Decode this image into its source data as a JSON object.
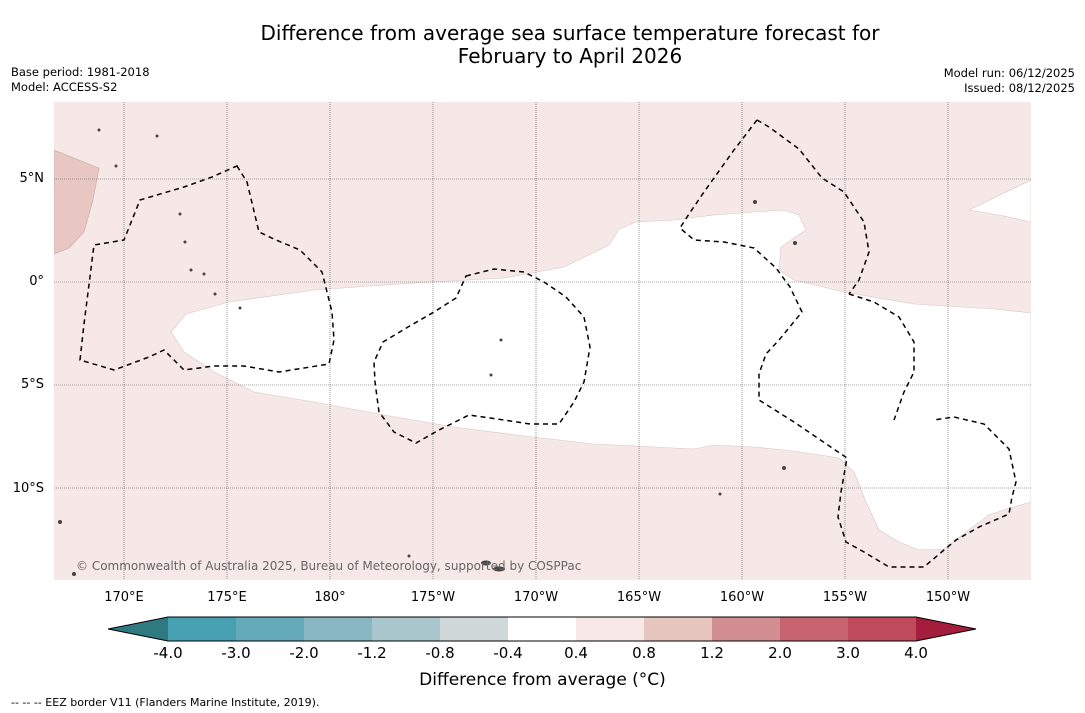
{
  "title": {
    "line1": "Difference from average sea surface temperature forecast for",
    "line2": "February to April 2026"
  },
  "meta": {
    "base_period": "Base period: 1981-2018",
    "model": "Model: ACCESS-S2",
    "model_run": "Model run: 06/12/2025",
    "issued": "Issued: 08/12/2025"
  },
  "map": {
    "lat_labels": [
      "5°N",
      "0°",
      "5°S",
      "10°S"
    ],
    "lon_labels": [
      "170°E",
      "175°E",
      "180°",
      "175°W",
      "170°W",
      "165°W",
      "160°W",
      "155°W",
      "150°W"
    ],
    "copyright": "© Commonwealth of Australia 2025, Bureau of Meteorology, supported by COSPPac",
    "colors": {
      "light_warm": "#f5e8e6",
      "moderate_warm": "#e8c6c1",
      "neutral": "#ffffff",
      "grid": "#555555",
      "eez": "#000000",
      "land": "#444444"
    }
  },
  "colorbar": {
    "ticks": [
      "-4.0",
      "-3.0",
      "-2.0",
      "-1.2",
      "-0.8",
      "-0.4",
      "0.4",
      "0.8",
      "1.2",
      "2.0",
      "3.0",
      "4.0"
    ],
    "colors": [
      "#2e7a80",
      "#47a1b3",
      "#65aabb",
      "#88b6c2",
      "#a8c6cb",
      "#cfd9da",
      "#ffffff",
      "#f6e9e7",
      "#e8c6c0",
      "#d38e94",
      "#c8646f",
      "#bf4a5b",
      "#a51d3c"
    ],
    "label": "Difference from average (°C)"
  },
  "legend_note": "--  --  -- EEZ border V11 (Flanders Marine Institute, 2019)."
}
